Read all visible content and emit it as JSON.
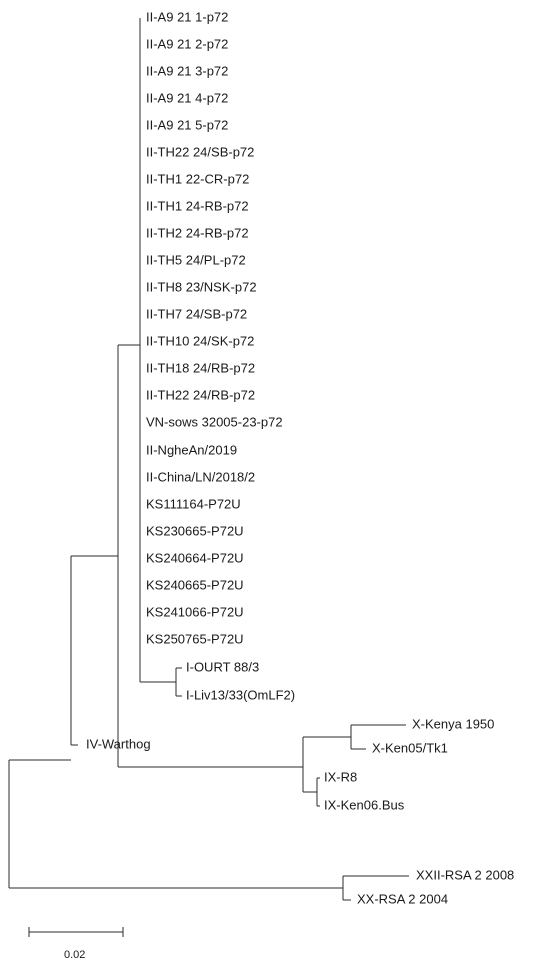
{
  "tree": {
    "leaves": [
      "II-A9 21 1-p72",
      "II-A9 21 2-p72",
      "II-A9 21 3-p72",
      "II-A9 21 4-p72",
      "II-A9 21 5-p72",
      "II-TH22 24/SB-p72",
      "II-TH1 22-CR-p72",
      "II-TH1 24-RB-p72",
      "II-TH2 24-RB-p72",
      "II-TH5 24/PL-p72",
      "II-TH8 23/NSK-p72",
      "II-TH7 24/SB-p72",
      "II-TH10 24/SK-p72",
      "II-TH18 24/RB-p72",
      "II-TH22 24/RB-p72",
      "VN-sows 32005-23-p72",
      "II-NgheAn/2019",
      "II-China/LN/2018/2",
      "KS111164-P72U",
      "KS230665-P72U",
      "KS240664-P72U",
      "KS240665-P72U",
      "KS241066-P72U",
      "KS250765-P72U",
      "I-OURT 88/3",
      "I-Liv13/33(OmLF2)",
      "X-Kenya 1950",
      "X-Ken05/Tk1",
      "IX-R8",
      "IX-Ken06.Bus",
      "IV-Warthog",
      "XXII-RSA 2 2008",
      "XX-RSA 2 2004"
    ],
    "scale_bar": {
      "value": 0.02,
      "label": "0.02"
    }
  }
}
